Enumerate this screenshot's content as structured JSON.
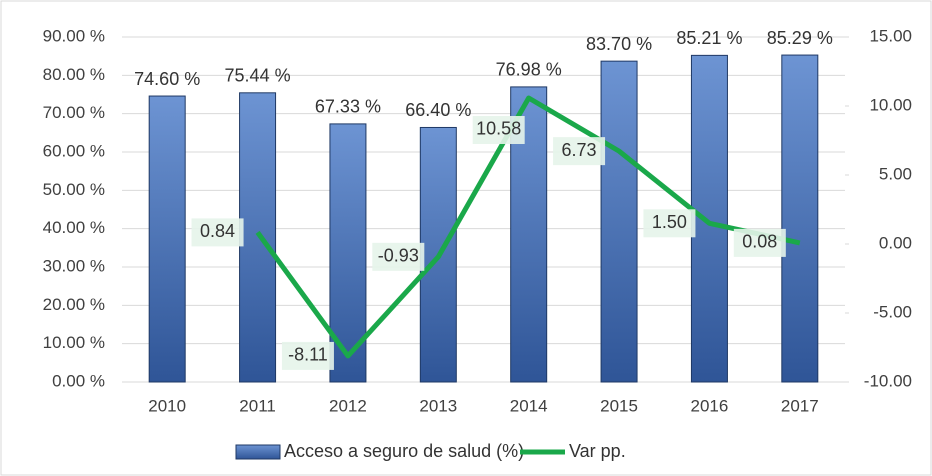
{
  "chart_data": {
    "type": "bar",
    "categories": [
      "2010",
      "2011",
      "2012",
      "2013",
      "2014",
      "2015",
      "2016",
      "2017"
    ],
    "series": [
      {
        "name": "Acceso a seguro de salud (%)",
        "type": "bar",
        "color": "#4472c4",
        "values": [
          74.6,
          75.44,
          67.33,
          66.4,
          76.98,
          83.7,
          85.21,
          85.29
        ],
        "value_labels": [
          "74.60 %",
          "75.44 %",
          "67.33 %",
          "66.40 %",
          "76.98 %",
          "83.70 %",
          "85.21 %",
          "85.29 %"
        ]
      },
      {
        "name": "Var pp.",
        "type": "line",
        "axis": "y2",
        "color": "#1aa84a",
        "values": [
          null,
          0.84,
          -8.11,
          -0.93,
          10.58,
          6.73,
          1.5,
          0.08
        ],
        "value_labels": [
          null,
          "0.84",
          "-8.11",
          "-0.93",
          "10.58",
          "6.73",
          "1.50",
          "0.08"
        ]
      }
    ],
    "ylim": [
      0,
      90
    ],
    "yticks": [
      {
        "value": 0,
        "label": "0.00 %"
      },
      {
        "value": 10,
        "label": "10.00 %"
      },
      {
        "value": 20,
        "label": "20.00 %"
      },
      {
        "value": 30,
        "label": "30.00 %"
      },
      {
        "value": 40,
        "label": "40.00 %"
      },
      {
        "value": 50,
        "label": "50.00 %"
      },
      {
        "value": 60,
        "label": "60.00 %"
      },
      {
        "value": 70,
        "label": "70.00 %"
      },
      {
        "value": 80,
        "label": "80.00 %"
      },
      {
        "value": 90,
        "label": "90.00 %"
      }
    ],
    "y2lim": [
      -10,
      15
    ],
    "y2ticks": [
      {
        "value": -10,
        "label": "-10.00"
      },
      {
        "value": -5,
        "label": "-5.00"
      },
      {
        "value": 0,
        "label": "0.00"
      },
      {
        "value": 5,
        "label": "5.00"
      },
      {
        "value": 10,
        "label": "10.00"
      },
      {
        "value": 15,
        "label": "15.00"
      }
    ],
    "grid": true,
    "legend": "bottom"
  }
}
